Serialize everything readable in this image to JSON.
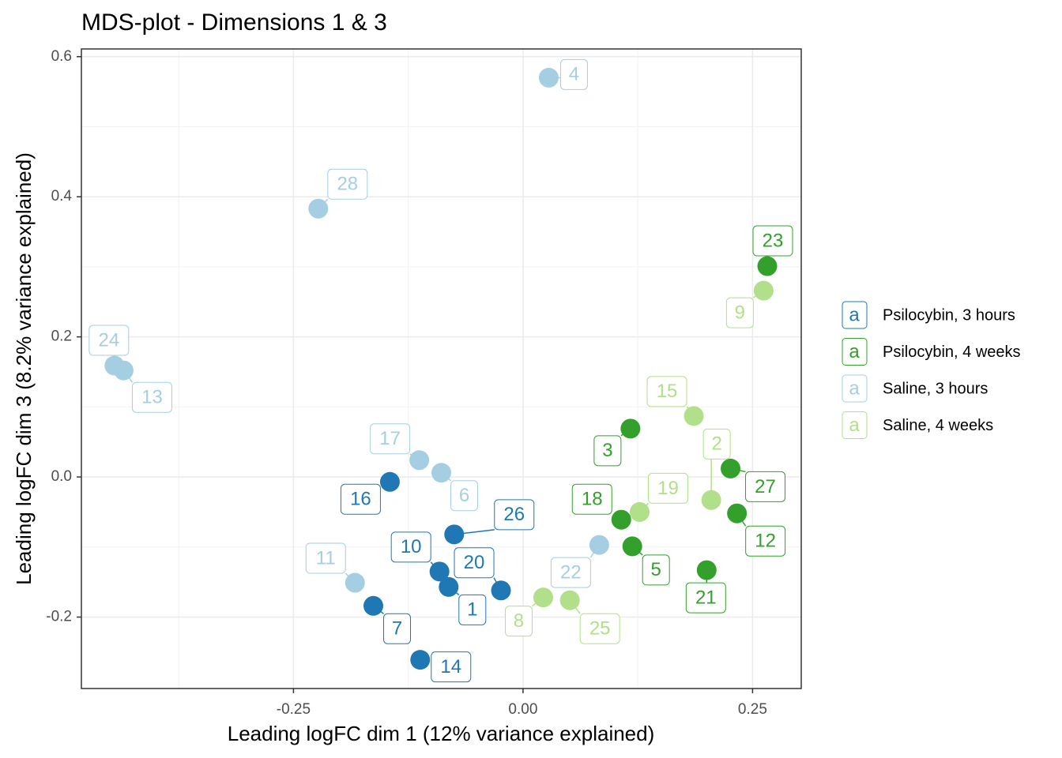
{
  "chart_data": {
    "type": "scatter",
    "title": "MDS-plot - Dimensions 1 & 3",
    "x_label": "Leading logFC dim 1 (12% variance explained)",
    "y_label": "Leading logFC dim 3 (8.2% variance explained)",
    "xlim": [
      -0.481,
      0.303
    ],
    "ylim": [
      -0.302,
      0.611
    ],
    "xticks": [
      {
        "value": -0.25,
        "label": "-0.25"
      },
      {
        "value": 0,
        "label": "0.00"
      },
      {
        "value": 0.25,
        "label": "0.25"
      }
    ],
    "yticks": [
      {
        "value": -0.2,
        "label": "-0.2"
      },
      {
        "value": 0,
        "label": "0.0"
      },
      0.2,
      0.4,
      0.6
    ],
    "x_minor_ticks": [
      -0.375,
      -0.125,
      0.125
    ],
    "y_minor_ticks": [
      -0.1,
      0.1,
      0.3,
      0.5
    ],
    "grid": true,
    "legend_position": "right",
    "legend_glyph": "a",
    "series": [
      {
        "name": "Psilocybin, 3 hours",
        "color": "#1f78b4",
        "labels": [
          "16",
          "26",
          "10",
          "20",
          "1",
          "7",
          "14"
        ],
        "x": [
          -0.145,
          -0.075,
          -0.091,
          -0.024,
          -0.081,
          -0.163,
          -0.112
        ],
        "values": [
          -0.007,
          -0.082,
          -0.135,
          -0.162,
          -0.157,
          -0.184,
          -0.261
        ]
      },
      {
        "name": "Psilocybin, 4 weeks",
        "color": "#33a02c",
        "labels": [
          "23",
          "3",
          "27",
          "12",
          "18",
          "5",
          "21"
        ],
        "x": [
          0.266,
          0.117,
          0.226,
          0.233,
          0.107,
          0.119,
          0.2
        ],
        "values": [
          0.301,
          0.069,
          0.012,
          -0.052,
          -0.061,
          -0.099,
          -0.133
        ]
      },
      {
        "name": "Saline, 3 hours",
        "color": "#a6cee3",
        "labels": [
          "4",
          "28",
          "24",
          "13",
          "17",
          "6",
          "11",
          "22"
        ],
        "x": [
          0.028,
          -0.223,
          -0.445,
          -0.435,
          -0.113,
          -0.089,
          -0.183,
          0.083
        ],
        "values": [
          0.57,
          0.383,
          0.159,
          0.152,
          0.024,
          0.006,
          -0.151,
          -0.097
        ]
      },
      {
        "name": "Saline, 4 weeks",
        "color": "#b2df8a",
        "labels": [
          "9",
          "15",
          "2",
          "19",
          "8",
          "25"
        ],
        "x": [
          0.262,
          0.186,
          0.205,
          0.127,
          0.022,
          0.051
        ],
        "values": [
          0.266,
          0.087,
          -0.033,
          -0.05,
          -0.172,
          -0.176
        ]
      }
    ]
  }
}
